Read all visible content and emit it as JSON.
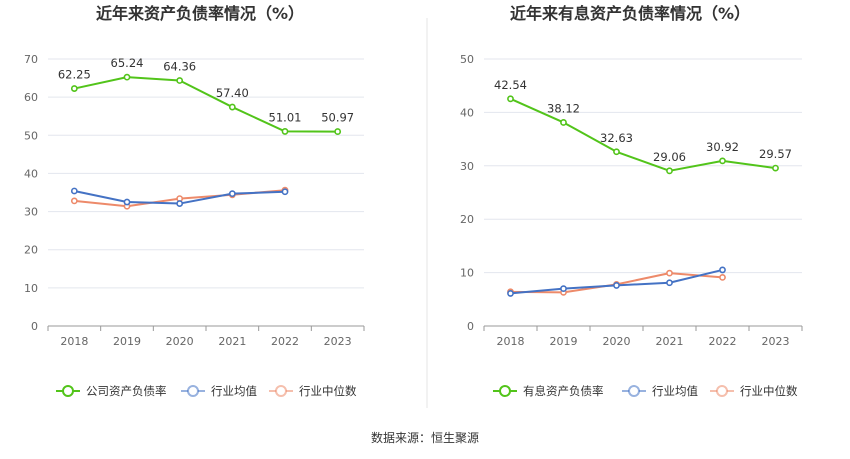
{
  "source": "数据来源：恒生聚源",
  "chart_data": [
    {
      "type": "line",
      "title": "近年来资产负债率情况（%）",
      "categories": [
        "2018",
        "2019",
        "2020",
        "2021",
        "2022",
        "2023"
      ],
      "ylim": [
        0,
        70
      ],
      "yticks": [
        0,
        10,
        20,
        30,
        40,
        50,
        60,
        70
      ],
      "grid": true,
      "legend_position": "bottom",
      "series": [
        {
          "name": "公司资产负债率",
          "color": "#52c41a",
          "labeled": true,
          "values": [
            62.25,
            65.24,
            64.36,
            57.4,
            51.01,
            50.97
          ],
          "labels": [
            "62.25",
            "65.24",
            "64.36",
            "57.40",
            "51.01",
            "50.97"
          ]
        },
        {
          "name": "行业均值",
          "color": "#4472c4",
          "labeled": false,
          "values": [
            35.4,
            32.5,
            32.1,
            34.7,
            35.2,
            null
          ]
        },
        {
          "name": "行业中位数",
          "color": "#ed8a6a",
          "labeled": false,
          "values": [
            32.8,
            31.4,
            33.4,
            34.4,
            35.6,
            null
          ]
        }
      ]
    },
    {
      "type": "line",
      "title": "近年来有息资产负债率情况（%）",
      "categories": [
        "2018",
        "2019",
        "2020",
        "2021",
        "2022",
        "2023"
      ],
      "ylim": [
        0,
        50
      ],
      "yticks": [
        0,
        10,
        20,
        30,
        40,
        50
      ],
      "grid": true,
      "legend_position": "bottom",
      "series": [
        {
          "name": "有息资产负债率",
          "color": "#52c41a",
          "labeled": true,
          "values": [
            42.54,
            38.12,
            32.63,
            29.06,
            30.92,
            29.57
          ],
          "labels": [
            "42.54",
            "38.12",
            "32.63",
            "29.06",
            "30.92",
            "29.57"
          ]
        },
        {
          "name": "行业均值",
          "color": "#4472c4",
          "labeled": false,
          "values": [
            6.1,
            7.0,
            7.6,
            8.1,
            10.5,
            null
          ]
        },
        {
          "name": "行业中位数",
          "color": "#ed8a6a",
          "labeled": false,
          "values": [
            6.4,
            6.3,
            7.8,
            9.9,
            9.1,
            null
          ]
        }
      ]
    }
  ]
}
